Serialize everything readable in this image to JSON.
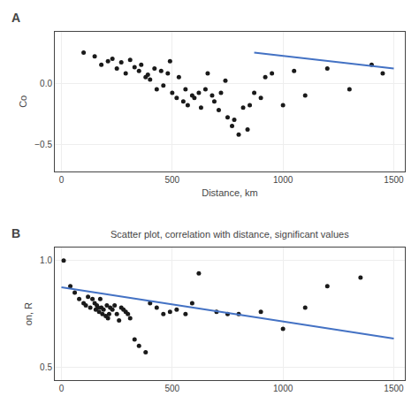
{
  "chart_data": [
    {
      "type": "scatter",
      "annotations": [
        "A"
      ],
      "x_label": "Distance, km",
      "y_label": "Co",
      "xlim": [
        -30,
        1550
      ],
      "ylim": [
        -0.72,
        0.42
      ],
      "xticks": [
        0,
        500,
        1000,
        1500
      ],
      "yticks": [
        {
          "value": 0.0,
          "label": "0.0"
        },
        -0.5
      ],
      "grid": true,
      "series": [
        {
          "type": "scatter",
          "color": "#1a1a1a",
          "x": [
            100,
            150,
            180,
            210,
            230,
            250,
            270,
            290,
            310,
            330,
            350,
            360,
            380,
            390,
            400,
            420,
            430,
            450,
            460,
            480,
            490,
            500,
            520,
            530,
            550,
            560,
            570,
            590,
            600,
            620,
            630,
            650,
            660,
            680,
            690,
            710,
            720,
            740,
            750,
            770,
            780,
            800,
            820,
            840,
            850,
            870,
            900,
            920,
            950,
            1000,
            1050,
            1100,
            1200,
            1300,
            1400,
            1450
          ],
          "values": [
            0.25,
            0.22,
            0.15,
            0.18,
            0.2,
            0.12,
            0.17,
            0.08,
            0.19,
            0.13,
            0.1,
            0.15,
            0.05,
            0.07,
            0.03,
            0.12,
            -0.05,
            0.1,
            -0.02,
            0.08,
            0.18,
            -0.08,
            -0.12,
            0.05,
            -0.15,
            -0.05,
            -0.18,
            -0.1,
            -0.12,
            -0.08,
            -0.2,
            -0.05,
            0.08,
            -0.1,
            -0.15,
            -0.22,
            -0.08,
            0.02,
            -0.28,
            -0.35,
            -0.3,
            -0.42,
            -0.2,
            -0.38,
            -0.18,
            -0.08,
            -0.12,
            0.05,
            0.08,
            -0.18,
            0.1,
            -0.1,
            0.12,
            -0.05,
            0.15,
            0.08
          ]
        },
        {
          "type": "line",
          "color": "#4472c4",
          "x": [
            870,
            1500
          ],
          "values": [
            0.25,
            0.12
          ]
        }
      ]
    },
    {
      "type": "scatter",
      "title": "Scatter plot, correlation with distance, significant values",
      "annotations": [
        "B"
      ],
      "y_label": "on, R",
      "xlim": [
        -30,
        1550
      ],
      "ylim": [
        0.44,
        1.06
      ],
      "xticks": [
        0,
        500,
        1000,
        1500
      ],
      "yticks": [
        0.5,
        {
          "value": 1.0,
          "label": "1.0"
        }
      ],
      "grid": true,
      "series": [
        {
          "type": "scatter",
          "color": "#1a1a1a",
          "x": [
            10,
            40,
            60,
            80,
            100,
            110,
            120,
            130,
            140,
            150,
            155,
            160,
            165,
            170,
            175,
            180,
            185,
            190,
            200,
            205,
            210,
            215,
            220,
            230,
            240,
            250,
            260,
            270,
            280,
            290,
            300,
            310,
            330,
            350,
            380,
            400,
            430,
            460,
            490,
            520,
            560,
            590,
            620,
            700,
            750,
            800,
            900,
            1000,
            1100,
            1200,
            1350
          ],
          "values": [
            1.0,
            0.88,
            0.85,
            0.82,
            0.8,
            0.79,
            0.83,
            0.78,
            0.82,
            0.8,
            0.77,
            0.79,
            0.78,
            0.76,
            0.82,
            0.78,
            0.75,
            0.77,
            0.74,
            0.79,
            0.73,
            0.75,
            0.78,
            0.77,
            0.79,
            0.75,
            0.72,
            0.78,
            0.77,
            0.76,
            0.75,
            0.73,
            0.63,
            0.6,
            0.57,
            0.8,
            0.78,
            0.75,
            0.76,
            0.77,
            0.75,
            0.8,
            0.94,
            0.76,
            0.75,
            0.75,
            0.76,
            0.68,
            0.78,
            0.88,
            0.92
          ]
        },
        {
          "type": "line",
          "color": "#4472c4",
          "x": [
            0,
            1500
          ],
          "values": [
            0.875,
            0.635
          ]
        }
      ]
    }
  ]
}
